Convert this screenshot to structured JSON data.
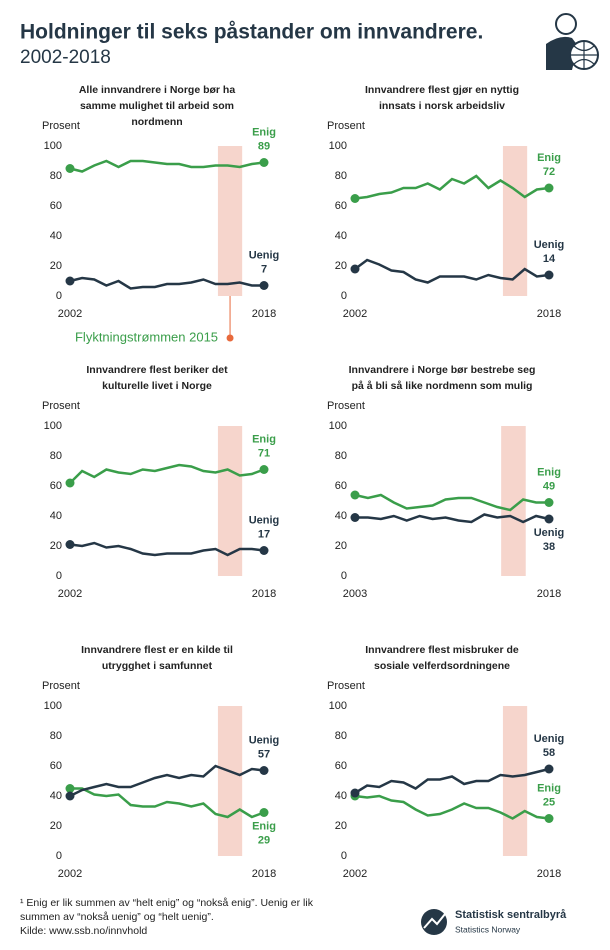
{
  "header": {
    "title": "Holdninger til seks påstander om innvandrere.",
    "subtitle": "2002-2018"
  },
  "chart_data": [
    {
      "type": "line",
      "title": [
        "Alle innvandrere  i Norge bør ha",
        "samme mulighet til arbeid som",
        "nordmenn"
      ],
      "y_label": "Prosent",
      "x": [
        2002,
        2003,
        2004,
        2005,
        2006,
        2007,
        2008,
        2009,
        2010,
        2011,
        2012,
        2013,
        2014,
        2015,
        2016,
        2017,
        2018
      ],
      "xlim": [
        2002,
        2018
      ],
      "xticks": [
        2002,
        2018
      ],
      "ylim": [
        0,
        100
      ],
      "yticks": [
        0,
        20,
        40,
        60,
        80,
        100
      ],
      "highlight": [
        2014.2,
        2016.2
      ],
      "annotation": "Flyktningstrømmen 2015",
      "series": [
        {
          "name": "Enig",
          "color": "#3a9e4a",
          "values": [
            85,
            83,
            87,
            90,
            86,
            90,
            90,
            89,
            88,
            88,
            86,
            86,
            87,
            87,
            86,
            88,
            89
          ]
        },
        {
          "name": "Uenig",
          "color": "#253746",
          "values": [
            10,
            12,
            11,
            7,
            10,
            5,
            6,
            6,
            8,
            8,
            9,
            11,
            8,
            8,
            9,
            7,
            7
          ]
        }
      ]
    },
    {
      "type": "line",
      "title": [
        "Innvandrere flest gjør en nyttig",
        "innsats i norsk arbeidsliv"
      ],
      "y_label": "Prosent",
      "x": [
        2002,
        2003,
        2004,
        2005,
        2006,
        2007,
        2008,
        2009,
        2010,
        2011,
        2012,
        2013,
        2014,
        2015,
        2016,
        2017,
        2018
      ],
      "xlim": [
        2002,
        2018
      ],
      "xticks": [
        2002,
        2018
      ],
      "ylim": [
        0,
        100
      ],
      "yticks": [
        0,
        20,
        40,
        60,
        80,
        100
      ],
      "highlight": [
        2014.2,
        2016.2
      ],
      "series": [
        {
          "name": "Enig",
          "color": "#3a9e4a",
          "values": [
            65,
            66,
            68,
            69,
            72,
            72,
            75,
            71,
            78,
            75,
            80,
            72,
            77,
            72,
            66,
            71,
            72
          ]
        },
        {
          "name": "Uenig",
          "color": "#253746",
          "values": [
            18,
            24,
            21,
            17,
            16,
            11,
            9,
            13,
            13,
            13,
            11,
            14,
            12,
            11,
            18,
            13,
            14
          ]
        }
      ]
    },
    {
      "type": "line",
      "title": [
        "Innvandrere flest beriker det",
        "kulturelle livet i Norge"
      ],
      "y_label": "Prosent",
      "x": [
        2002,
        2003,
        2004,
        2005,
        2006,
        2007,
        2008,
        2009,
        2010,
        2011,
        2012,
        2013,
        2014,
        2015,
        2016,
        2017,
        2018
      ],
      "xlim": [
        2002,
        2018
      ],
      "xticks": [
        2002,
        2018
      ],
      "ylim": [
        0,
        100
      ],
      "yticks": [
        0,
        20,
        40,
        60,
        80,
        100
      ],
      "highlight": [
        2014.2,
        2016.2
      ],
      "series": [
        {
          "name": "Enig",
          "color": "#3a9e4a",
          "values": [
            62,
            70,
            66,
            71,
            69,
            68,
            71,
            70,
            72,
            74,
            73,
            70,
            69,
            71,
            67,
            68,
            71
          ]
        },
        {
          "name": "Uenig",
          "color": "#253746",
          "values": [
            21,
            20,
            22,
            19,
            20,
            18,
            15,
            14,
            15,
            15,
            15,
            17,
            18,
            14,
            18,
            18,
            17
          ]
        }
      ]
    },
    {
      "type": "line",
      "title": [
        "Innvandrere  i Norge bør bestrebe seg",
        "på å bli så like nordmenn  som mulig"
      ],
      "y_label": "Prosent",
      "x": [
        2003,
        2004,
        2005,
        2006,
        2007,
        2008,
        2009,
        2010,
        2011,
        2012,
        2013,
        2014,
        2015,
        2016,
        2017,
        2018
      ],
      "xlim": [
        2003,
        2018
      ],
      "xticks": [
        2003,
        2018
      ],
      "ylim": [
        0,
        100
      ],
      "yticks": [
        0,
        20,
        40,
        60,
        80,
        100
      ],
      "highlight": [
        2014.3,
        2016.2
      ],
      "series": [
        {
          "name": "Enig",
          "color": "#3a9e4a",
          "values": [
            54,
            52,
            54,
            49,
            45,
            46,
            47,
            51,
            52,
            52,
            49,
            46,
            44,
            51,
            49,
            49
          ]
        },
        {
          "name": "Uenig",
          "color": "#253746",
          "values": [
            39,
            39,
            38,
            40,
            37,
            40,
            38,
            39,
            37,
            36,
            41,
            39,
            40,
            36,
            40,
            38
          ]
        }
      ]
    },
    {
      "type": "line",
      "title": [
        "Innvandrere flest er en kilde til",
        "utrygghet  i samfunnet"
      ],
      "y_label": "Prosent",
      "x": [
        2002,
        2003,
        2004,
        2005,
        2006,
        2007,
        2008,
        2009,
        2010,
        2011,
        2012,
        2013,
        2014,
        2015,
        2016,
        2017,
        2018
      ],
      "xlim": [
        2002,
        2018
      ],
      "xticks": [
        2002,
        2018
      ],
      "ylim": [
        0,
        100
      ],
      "yticks": [
        0,
        20,
        40,
        60,
        80,
        100
      ],
      "highlight": [
        2014.2,
        2016.2
      ],
      "series": [
        {
          "name": "Enig",
          "color": "#3a9e4a",
          "values": [
            45,
            45,
            41,
            40,
            41,
            34,
            33,
            33,
            36,
            35,
            33,
            35,
            28,
            26,
            31,
            26,
            29
          ]
        },
        {
          "name": "Uenig",
          "color": "#253746",
          "values": [
            40,
            44,
            46,
            48,
            46,
            46,
            49,
            52,
            54,
            52,
            54,
            53,
            60,
            57,
            54,
            58,
            57
          ]
        }
      ]
    },
    {
      "type": "line",
      "title": [
        "Innvandrere flest misbruker de",
        "sosiale velferdsordningene"
      ],
      "y_label": "Prosent",
      "x": [
        2002,
        2003,
        2004,
        2005,
        2006,
        2007,
        2008,
        2009,
        2010,
        2011,
        2012,
        2013,
        2014,
        2015,
        2016,
        2017,
        2018
      ],
      "xlim": [
        2002,
        2018
      ],
      "xticks": [
        2002,
        2018
      ],
      "ylim": [
        0,
        100
      ],
      "yticks": [
        0,
        20,
        40,
        60,
        80,
        100
      ],
      "highlight": [
        2014.2,
        2016.2
      ],
      "series": [
        {
          "name": "Enig",
          "color": "#3a9e4a",
          "values": [
            40,
            39,
            40,
            37,
            36,
            31,
            27,
            28,
            31,
            35,
            32,
            32,
            29,
            25,
            30,
            26,
            25
          ]
        },
        {
          "name": "Uenig",
          "color": "#253746",
          "values": [
            42,
            47,
            46,
            50,
            49,
            45,
            51,
            51,
            53,
            48,
            50,
            50,
            54,
            53,
            54,
            56,
            58
          ]
        }
      ]
    }
  ],
  "footer": {
    "note": [
      "¹ Enig er lik summen av “helt enig” og “nokså enig”. Uenig er lik",
      "summen av “nokså uenig” og “helt uenig”."
    ],
    "source": "Kilde: www.ssb.no/innvhold"
  },
  "logo": {
    "name": "Statistisk sentralbyrå",
    "english": "Statistics Norway"
  }
}
